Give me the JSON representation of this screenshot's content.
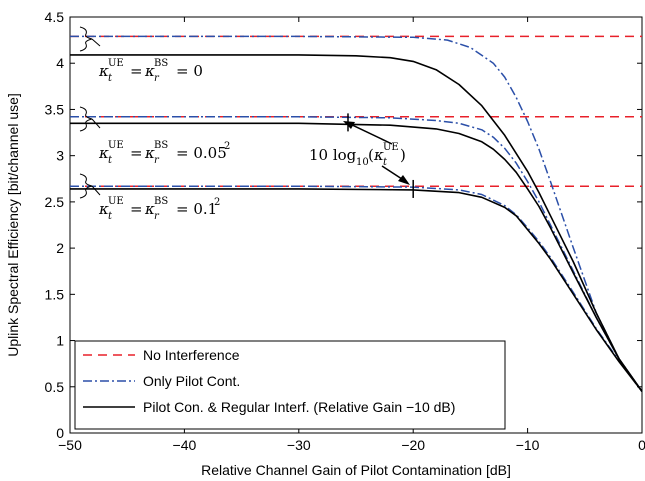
{
  "chart_data": {
    "type": "line",
    "xlabel": "Relative Channel Gain of Pilot Contamination [dB]",
    "ylabel": "Uplink Spectral Efficiency [bit/channel use]",
    "xlim": [
      -50,
      0
    ],
    "ylim": [
      0,
      4.5
    ],
    "xticks": [
      -50,
      -40,
      -30,
      -20,
      -10,
      0
    ],
    "xtick_labels": [
      "−50",
      "−40",
      "−30",
      "−20",
      "−10",
      "0"
    ],
    "yticks": [
      0,
      0.5,
      1,
      1.5,
      2,
      2.5,
      3,
      3.5,
      4,
      4.5
    ],
    "ytick_labels": [
      "0",
      "0.5",
      "1",
      "1.5",
      "2",
      "2.5",
      "3",
      "3.5",
      "4",
      "4.5"
    ],
    "grid": false,
    "legend_placement": "bottom-left",
    "legend": [
      {
        "label": "No Interference",
        "style": "dashed",
        "color": "#e8202a"
      },
      {
        "label": "Only Pilot Cont.",
        "style": "dashdot",
        "color": "#2b4fa8"
      },
      {
        "label": "Pilot Con. & Regular Interf. (Relative Gain −10 dB)",
        "style": "solid",
        "color": "#000000"
      }
    ],
    "series": [
      {
        "name": "No Interference",
        "group": 0,
        "style": "dashed",
        "color": "#e8202a",
        "x": [
          -50,
          0
        ],
        "y": [
          4.29,
          4.29
        ]
      },
      {
        "name": "Only Pilot Cont.",
        "group": 0,
        "style": "dashdot",
        "color": "#2b4fa8",
        "x": [
          -50,
          -30,
          -20,
          -17,
          -15,
          -13,
          -12,
          -11,
          -10,
          -9,
          -8,
          -6,
          -4,
          -2,
          0
        ],
        "y": [
          4.29,
          4.29,
          4.28,
          4.25,
          4.17,
          4.0,
          3.85,
          3.63,
          3.37,
          3.07,
          2.72,
          2.0,
          1.3,
          0.8,
          0.45
        ]
      },
      {
        "name": "Pilot Con. & Regular Interf. (Relative Gain −10 dB)",
        "group": 0,
        "style": "solid",
        "color": "#000000",
        "x": [
          -50,
          -30,
          -25,
          -22,
          -20,
          -18,
          -16,
          -14,
          -12,
          -10,
          -9,
          -8,
          -6,
          -4,
          -2,
          0
        ],
        "y": [
          4.09,
          4.09,
          4.08,
          4.06,
          4.02,
          3.93,
          3.77,
          3.54,
          3.22,
          2.83,
          2.6,
          2.35,
          1.85,
          1.3,
          0.8,
          0.45
        ]
      },
      {
        "name": "No Interference",
        "group": 1,
        "style": "dashed",
        "color": "#e8202a",
        "x": [
          -50,
          0
        ],
        "y": [
          3.42,
          3.42
        ]
      },
      {
        "name": "Only Pilot Cont.",
        "group": 1,
        "style": "dashdot",
        "color": "#2b4fa8",
        "x": [
          -50,
          -30,
          -22,
          -18,
          -16,
          -14,
          -13,
          -12,
          -11,
          -10,
          -9,
          -8,
          -6,
          -4,
          -2,
          0
        ],
        "y": [
          3.42,
          3.42,
          3.41,
          3.38,
          3.35,
          3.28,
          3.2,
          3.08,
          2.92,
          2.72,
          2.5,
          2.25,
          1.75,
          1.25,
          0.8,
          0.45
        ]
      },
      {
        "name": "Pilot Con. & Regular Interf. (Relative Gain −10 dB)",
        "group": 1,
        "style": "solid",
        "color": "#000000",
        "x": [
          -50,
          -30,
          -22,
          -18,
          -16,
          -14,
          -13,
          -12,
          -11,
          -10,
          -9,
          -8,
          -6,
          -4,
          -2,
          0
        ],
        "y": [
          3.35,
          3.35,
          3.33,
          3.29,
          3.24,
          3.15,
          3.07,
          2.96,
          2.82,
          2.64,
          2.45,
          2.22,
          1.73,
          1.25,
          0.8,
          0.45
        ]
      },
      {
        "name": "No Interference",
        "group": 2,
        "style": "dashed",
        "color": "#e8202a",
        "x": [
          -50,
          0
        ],
        "y": [
          2.67,
          2.67
        ]
      },
      {
        "name": "Only Pilot Cont.",
        "group": 2,
        "style": "dashdot",
        "color": "#2b4fa8",
        "x": [
          -50,
          -30,
          -20,
          -16,
          -14,
          -12,
          -11,
          -10,
          -9,
          -8,
          -6,
          -4,
          -2,
          0
        ],
        "y": [
          2.67,
          2.67,
          2.66,
          2.63,
          2.58,
          2.46,
          2.36,
          2.22,
          2.07,
          1.9,
          1.52,
          1.13,
          0.78,
          0.45
        ]
      },
      {
        "name": "Pilot Con. & Regular Interf. (Relative Gain −10 dB)",
        "group": 2,
        "style": "solid",
        "color": "#000000",
        "x": [
          -50,
          -30,
          -20,
          -16,
          -14,
          -12,
          -11,
          -10,
          -9,
          -8,
          -6,
          -4,
          -2,
          0
        ],
        "y": [
          2.64,
          2.64,
          2.63,
          2.6,
          2.55,
          2.44,
          2.35,
          2.2,
          2.05,
          1.88,
          1.5,
          1.12,
          0.77,
          0.45
        ]
      }
    ],
    "markers": [
      {
        "x": -25.7,
        "y": 3.36
      },
      {
        "x": -20,
        "y": 2.64
      }
    ],
    "annotations": [
      {
        "text": "κ_t^UE = κ_r^BS = 0",
        "x": -47,
        "y": 4.09
      },
      {
        "text": "κ_t^UE = κ_r^BS = 0.05²",
        "x": -47,
        "y": 3.35
      },
      {
        "text": "κ_t^UE = κ_r^BS = 0.1²",
        "x": -47,
        "y": 2.64
      },
      {
        "text": "10 log₁₀(κ_t^UE)",
        "x": -22,
        "y": 3.0
      }
    ]
  }
}
